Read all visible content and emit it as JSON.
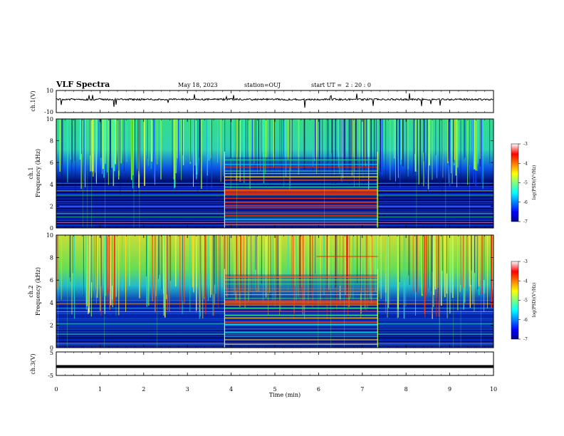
{
  "header": {
    "title": "VLF Spectra",
    "date": "May 18, 2023",
    "station": "station=OUJ",
    "start": "start UT =  2 : 20 : 0"
  },
  "chart_data": [
    {
      "name": "ch1-waveform",
      "type": "line",
      "ylabel": "ch.1(V)",
      "ylim": [
        -10,
        10
      ],
      "yticks": [
        "10",
        "-10"
      ],
      "trace": "noisy baseline near +2 V with occasional downward spikes"
    },
    {
      "name": "ch1-spectrogram",
      "type": "heatmap",
      "ylabel": "ch.1\nFrequency (kHz)",
      "ylim": [
        0,
        10
      ],
      "yticks": [
        "0",
        "2",
        "4",
        "6",
        "8",
        "10"
      ],
      "colorbar": {
        "label": "log(PSD)(V²/Hz)",
        "range": [
          -7,
          -3
        ],
        "ticks": [
          "-3",
          "-4",
          "-5",
          "-6",
          "-7"
        ]
      },
      "event_window_min": [
        3.85,
        7.35
      ]
    },
    {
      "name": "ch2-spectrogram",
      "type": "heatmap",
      "ylabel": "ch.2\nFrequency (kHz)",
      "ylim": [
        0,
        10
      ],
      "yticks": [
        "0",
        "2",
        "4",
        "6",
        "8",
        "10"
      ],
      "colorbar": {
        "label": "log(PSD)(V²/Hz)",
        "range": [
          -7,
          -3
        ],
        "ticks": [
          "-3",
          "-4",
          "-5",
          "-6",
          "-7"
        ]
      },
      "event_window_min": [
        3.85,
        7.35
      ]
    },
    {
      "name": "ch3-waveform",
      "type": "line",
      "ylabel": "ch.3(V)",
      "ylim": [
        -5,
        5
      ],
      "yticks": [
        "5",
        "-5"
      ],
      "trace": "thick flat line near -1 V"
    }
  ],
  "xaxis": {
    "label": "Time (min)",
    "range": [
      0,
      10
    ],
    "ticks": [
      "0",
      "1",
      "2",
      "3",
      "4",
      "5",
      "6",
      "7",
      "8",
      "9",
      "10"
    ]
  }
}
